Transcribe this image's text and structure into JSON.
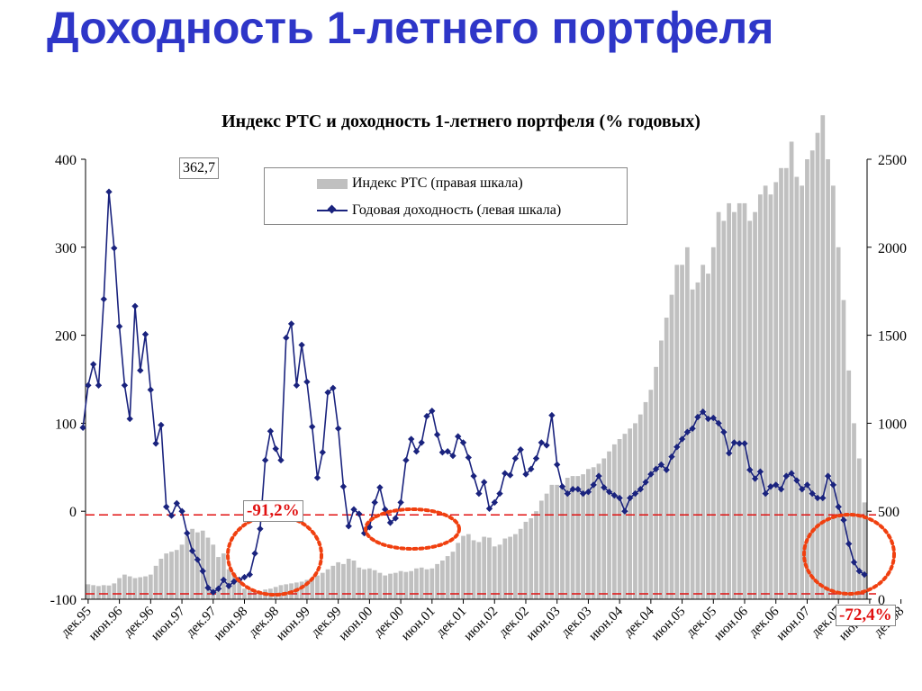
{
  "title": "Доходность 1-летнего портфеля",
  "chart_data": {
    "type": "bar+line",
    "title": "Индекс РТС и доходность 1-летнего портфеля (% годовых)",
    "left_axis": {
      "ylim": [
        -100,
        400
      ],
      "ticks": [
        "-100",
        "0",
        "100",
        "200",
        "300",
        "400"
      ]
    },
    "right_axis": {
      "ylim": [
        0,
        2500
      ],
      "ticks": [
        "0",
        "500",
        "1000",
        "1500",
        "2000",
        "2500"
      ]
    },
    "x_ticks": [
      "дек.95",
      "июн.96",
      "дек.96",
      "июн.97",
      "дек.97",
      "июн.98",
      "дек.98",
      "июн.99",
      "дек.99",
      "июн.00",
      "дек.00",
      "июн.01",
      "дек.01",
      "июн.02",
      "дек.02",
      "июн.03",
      "дек.03",
      "июн.04",
      "дек.04",
      "июн.05",
      "дек.05",
      "июн.06",
      "дек.06",
      "июн.07",
      "дек.07",
      "июн.08",
      "дек.08"
    ],
    "legend": [
      "Индекс РТС (правая шкала)",
      "Годовая доходность (левая шкала)"
    ],
    "bar_series": {
      "name": "Индекс РТС (правая шкала)",
      "axis": "right",
      "values": [
        85,
        80,
        75,
        80,
        78,
        90,
        120,
        140,
        130,
        120,
        125,
        130,
        140,
        190,
        230,
        260,
        270,
        280,
        310,
        360,
        400,
        380,
        390,
        350,
        310,
        240,
        260,
        170,
        150,
        100,
        60,
        50,
        40,
        45,
        55,
        60,
        70,
        80,
        85,
        90,
        95,
        100,
        110,
        120,
        135,
        150,
        170,
        190,
        210,
        200,
        230,
        220,
        180,
        170,
        175,
        165,
        150,
        135,
        145,
        150,
        160,
        155,
        160,
        175,
        180,
        170,
        175,
        200,
        220,
        245,
        270,
        320,
        360,
        370,
        335,
        325,
        355,
        350,
        300,
        310,
        345,
        355,
        370,
        400,
        440,
        460,
        500,
        560,
        600,
        650,
        650,
        640,
        690,
        700,
        700,
        710,
        740,
        750,
        770,
        800,
        840,
        880,
        910,
        940,
        970,
        1000,
        1050,
        1120,
        1190,
        1320,
        1470,
        1600,
        1730,
        1900,
        1900,
        2000,
        1760,
        1800,
        1900,
        1850,
        2000,
        2200,
        2150,
        2250,
        2200,
        2250,
        2250,
        2150,
        2200,
        2300,
        2350,
        2300,
        2370,
        2450,
        2450,
        2600,
        2400,
        2350,
        2500,
        2550,
        2650,
        2750,
        2500,
        2350,
        2000,
        1700,
        1300,
        1000,
        800,
        550
      ],
      "note": "RTS index level (approx.), monthly, Dec 1995 – Dec 2008"
    },
    "line_series": {
      "name": "Годовая доходность (левая шкала)",
      "axis": "left",
      "values": [
        95,
        143,
        167,
        143,
        241,
        363,
        299,
        210,
        143,
        105,
        233,
        160,
        201,
        138,
        77,
        98,
        5,
        -5,
        9,
        0,
        -25,
        -45,
        -55,
        -68,
        -87,
        -92,
        -88,
        -78,
        -85,
        -80,
        -78,
        -75,
        -72,
        -48,
        -20,
        58,
        91,
        71,
        58,
        197,
        213,
        143,
        189,
        147,
        96,
        38,
        67,
        135,
        140,
        94,
        28,
        -17,
        2,
        -3,
        -25,
        -18,
        10,
        27,
        2,
        -13,
        -8,
        10,
        58,
        82,
        68,
        78,
        108,
        114,
        87,
        67,
        68,
        63,
        85,
        78,
        61,
        40,
        20,
        33,
        3,
        10,
        20,
        43,
        41,
        60,
        70,
        42,
        48,
        60,
        78,
        75,
        109,
        53,
        28,
        20,
        25,
        25,
        20,
        22,
        30,
        40,
        27,
        22,
        18,
        15,
        0,
        15,
        20,
        25,
        33,
        42,
        48,
        53,
        47,
        62,
        73,
        82,
        90,
        94,
        107,
        113,
        105,
        106,
        100,
        90,
        66,
        78,
        77,
        77,
        47,
        37,
        45,
        20,
        28,
        30,
        25,
        40,
        43,
        35,
        25,
        30,
        20,
        15,
        15,
        40,
        30,
        5,
        -10,
        -37,
        -58,
        -68,
        -72
      ],
      "note": "1-year portfolio return % p.a. (approx.), monthly"
    },
    "annotations": [
      {
        "label": "362,7",
        "type": "peak"
      },
      {
        "label": "-91,2%",
        "type": "trough"
      },
      {
        "label": "-72,4%",
        "type": "end"
      }
    ],
    "colors": {
      "bars": "#c0c0c0",
      "line": "#1a237e",
      "annotation": "#e01010",
      "title": "#2e36c8"
    }
  }
}
